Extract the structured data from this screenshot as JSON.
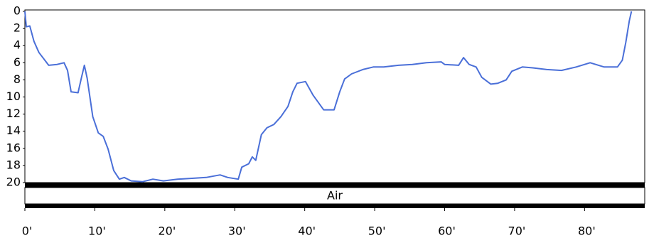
{
  "chart_data": {
    "type": "line",
    "x": [
      0,
      0.2,
      0.7,
      1.3,
      2,
      3.4,
      4.6,
      5.6,
      6.1,
      6.6,
      7.6,
      8.1,
      8.5,
      8.9,
      9.7,
      10.5,
      11.2,
      11.9,
      12.7,
      13.5,
      14.2,
      15.2,
      16.8,
      18.3,
      19.8,
      21.8,
      23.9,
      25.9,
      27.9,
      29,
      30.5,
      31,
      32,
      32.5,
      33,
      33.8,
      34.6,
      35.6,
      36.6,
      37.6,
      38.3,
      38.9,
      40.1,
      41.2,
      42.7,
      44.2,
      45,
      45.7,
      46.7,
      48.3,
      49.8,
      51.3,
      53.4,
      55.4,
      57.4,
      59.5,
      60,
      62,
      62.7,
      63.5,
      64.5,
      65.3,
      66.6,
      67.6,
      68.8,
      69.6,
      71.1,
      72.6,
      74.6,
      76.7,
      78.8,
      80.8,
      82.8,
      84.7,
      85.4,
      85.9,
      86.4,
      86.7
    ],
    "series": [
      {
        "color": "#4a6fd8",
        "values": [
          0,
          1.8,
          1.7,
          3.5,
          4.8,
          6.3,
          6.2,
          6,
          6.9,
          9.4,
          9.5,
          7.7,
          6.3,
          7.8,
          12.3,
          14.2,
          14.6,
          16.1,
          18.6,
          19.6,
          19.4,
          19.8,
          19.9,
          19.6,
          19.8,
          19.6,
          19.5,
          19.4,
          19.1,
          19.4,
          19.6,
          18.2,
          17.8,
          17,
          17.4,
          14.4,
          13.6,
          13.2,
          12.3,
          11.1,
          9.4,
          8.4,
          8.2,
          9.8,
          11.5,
          11.5,
          9.4,
          7.9,
          7.3,
          6.8,
          6.5,
          6.5,
          6.3,
          6.2,
          6,
          5.9,
          6.2,
          6.3,
          5.4,
          6.2,
          6.5,
          7.7,
          8.5,
          8.4,
          8,
          7,
          6.5,
          6.6,
          6.8,
          6.9,
          6.5,
          6,
          6.5,
          6.5,
          5.7,
          3.6,
          1.1,
          0
        ]
      }
    ],
    "xlim": [
      0,
      88.6
    ],
    "xticks": [
      {
        "value": 0,
        "label": "0'"
      },
      {
        "value": 10,
        "label": "10'"
      },
      {
        "value": 20,
        "label": "20'"
      },
      {
        "value": 30,
        "label": "30'"
      },
      {
        "value": 40,
        "label": "40'"
      },
      {
        "value": 50,
        "label": "50'"
      },
      {
        "value": 60,
        "label": "60'"
      },
      {
        "value": 70,
        "label": "70'"
      },
      {
        "value": 80,
        "label": "80'"
      }
    ],
    "ylim": [
      0,
      20
    ],
    "y_inverted": true,
    "yticks": [
      0,
      2,
      4,
      6,
      8,
      10,
      12,
      14,
      16,
      18,
      20
    ],
    "gas_label": "Air"
  }
}
